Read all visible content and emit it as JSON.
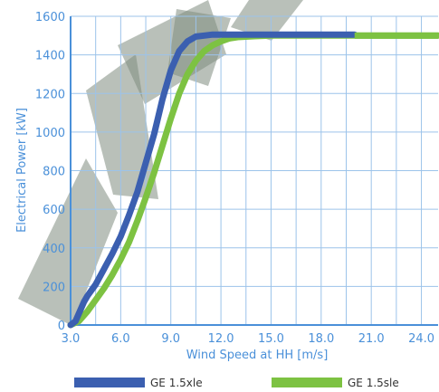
{
  "chart_data": {
    "type": "line",
    "xlabel": "Wind Speed at HH [m/s]",
    "ylabel": "Electrical Power [kW]",
    "xlim": [
      3.0,
      25.0
    ],
    "ylim": [
      0,
      1600
    ],
    "x_ticks": [
      "3.0",
      "6.0",
      "9.0",
      "12.0",
      "15.0",
      "18.0",
      "21.0",
      "24.0"
    ],
    "y_ticks": [
      "0",
      "200",
      "400",
      "600",
      "800",
      "1000",
      "1200",
      "1400",
      "1600"
    ],
    "grid": true,
    "legend_position": "bottom",
    "series": [
      {
        "name": "GE 1.5xle",
        "color": "#3b5fb0",
        "x": [
          3.0,
          3.3,
          3.5,
          3.8,
          4.0,
          4.5,
          5.0,
          5.5,
          6.0,
          6.5,
          7.0,
          7.5,
          8.0,
          8.5,
          9.0,
          9.5,
          10.0,
          10.5,
          11.0,
          11.5,
          12.0,
          13.0,
          15.0,
          18.0,
          20.0
        ],
        "y": [
          0,
          20,
          60,
          120,
          150,
          210,
          290,
          370,
          460,
          570,
          690,
          840,
          990,
          1170,
          1320,
          1420,
          1470,
          1495,
          1500,
          1505,
          1505,
          1505,
          1505,
          1505,
          1505
        ]
      },
      {
        "name": "GE 1.5sle",
        "color": "#7dc242",
        "x": [
          3.0,
          3.5,
          4.0,
          4.5,
          5.0,
          5.5,
          6.0,
          6.5,
          7.0,
          7.5,
          8.0,
          8.5,
          9.0,
          9.5,
          10.0,
          10.5,
          11.0,
          11.5,
          12.0,
          12.5,
          13.0,
          14.0,
          15.0,
          18.0,
          21.0,
          25.0
        ],
        "y": [
          0,
          20,
          70,
          130,
          190,
          260,
          340,
          430,
          540,
          660,
          790,
          930,
          1070,
          1200,
          1300,
          1370,
          1420,
          1450,
          1470,
          1485,
          1492,
          1497,
          1500,
          1500,
          1500,
          1500
        ]
      }
    ],
    "tail_line": {
      "color": "#7dc242",
      "x_start": 20.0,
      "x_end": 25.0,
      "y": 1500
    }
  }
}
